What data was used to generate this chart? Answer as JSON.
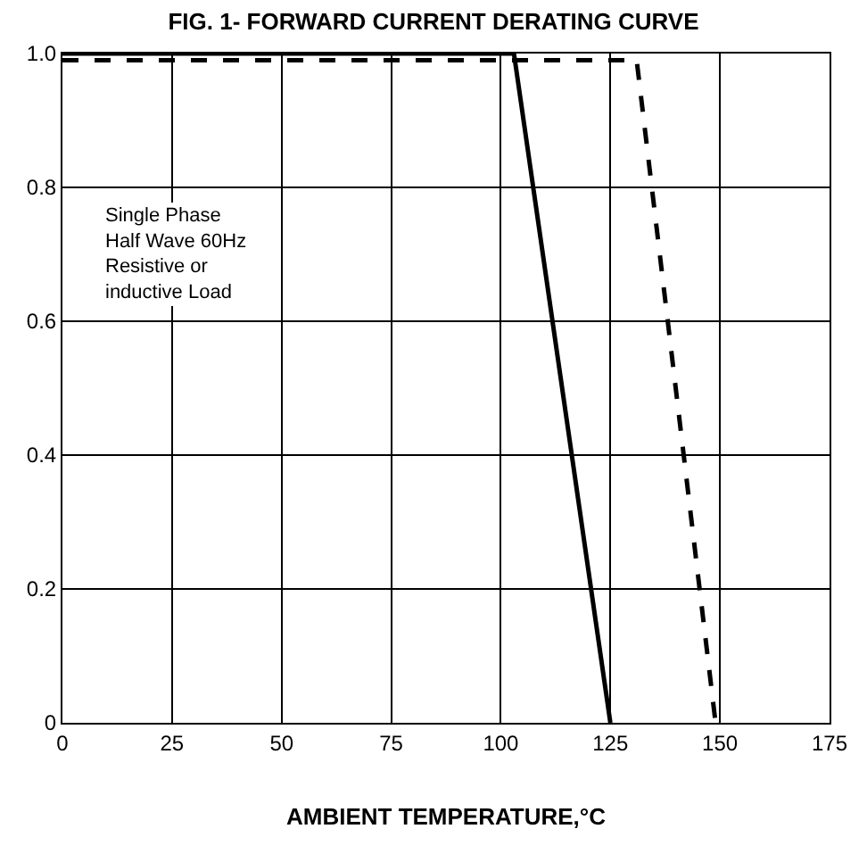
{
  "chart_data": {
    "type": "line",
    "title": "FIG. 1- FORWARD CURRENT DERATING CURVE",
    "xlabel": "AMBIENT TEMPERATURE,°C",
    "annotations": [
      "Single Phase\nHalf Wave 60Hz\nResistive or\ninductive Load"
    ],
    "series": [
      {
        "color": "#000000",
        "line_style": "solid",
        "x": [
          0,
          103,
          125
        ],
        "values": [
          1.0,
          1.0,
          0
        ]
      },
      {
        "color": "#000000",
        "line_style": "dashed",
        "x": [
          0,
          131,
          149
        ],
        "values": [
          0.99,
          0.99,
          0
        ]
      }
    ],
    "xlim": [
      0,
      175
    ],
    "xticks": [
      0,
      25,
      50,
      75,
      100,
      125,
      150,
      175
    ],
    "ylim": [
      0,
      1.0
    ],
    "yticks": [
      0,
      0.2,
      0.4,
      0.6,
      0.8,
      {
        "value": 1.0,
        "label": "1.0"
      }
    ],
    "grid": true,
    "marker": "none"
  }
}
